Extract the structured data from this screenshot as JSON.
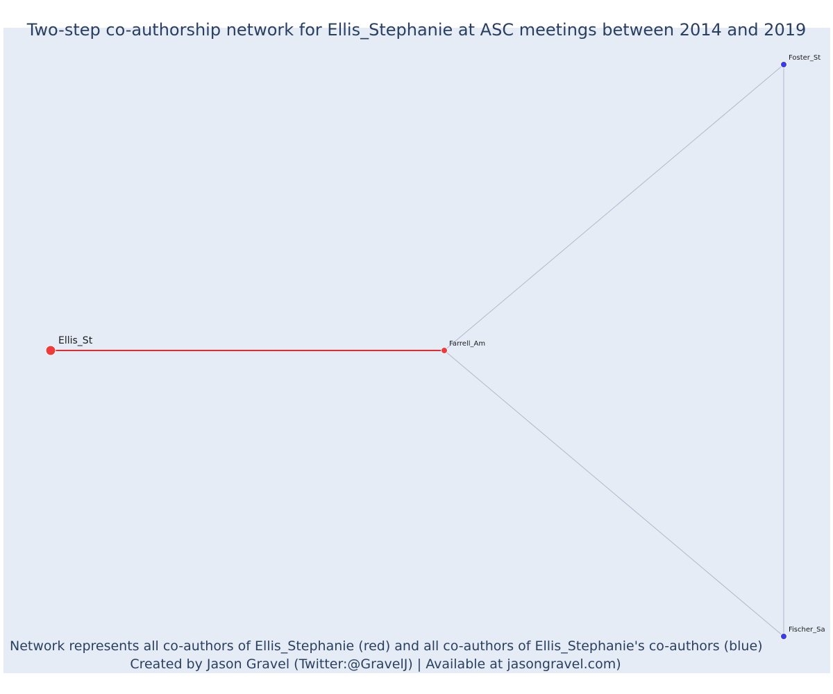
{
  "title": "Two-step co-authorship network for Ellis_Stephanie at ASC meetings between 2014 and 2019",
  "caption": {
    "line1": "Network represents all co-authors of Ellis_Stephanie (red) and all co-authors of Ellis_Stephanie's co-authors (blue)",
    "line2": "Created by Jason Gravel (Twitter:@GravelJ) | Available at jasongravel.com)"
  },
  "colors": {
    "background": "#e5ecf6",
    "ego": "#ef3b3b",
    "first_step": "#ef3b3b",
    "second_step": "#3b3bea",
    "ego_edge": "#e8282c",
    "other_edge": "#b3b6cc",
    "text": "#2a3f5f"
  },
  "chart_data": {
    "type": "network",
    "nodes": [
      {
        "id": "Ellis_St",
        "label": "Ellis_St",
        "group": "ego"
      },
      {
        "id": "Farrell_Am",
        "label": "Farrell_Am",
        "group": "co-author"
      },
      {
        "id": "Foster_St",
        "label": "Foster_St",
        "group": "co-author-of-co-author"
      },
      {
        "id": "Fischer_Sa",
        "label": "Fischer_Sa",
        "group": "co-author-of-co-author"
      }
    ],
    "edges": [
      {
        "source": "Ellis_St",
        "target": "Farrell_Am",
        "type": "ego"
      },
      {
        "source": "Farrell_Am",
        "target": "Foster_St",
        "type": "other"
      },
      {
        "source": "Farrell_Am",
        "target": "Fischer_Sa",
        "type": "other"
      },
      {
        "source": "Foster_St",
        "target": "Fischer_Sa",
        "type": "other"
      }
    ]
  }
}
